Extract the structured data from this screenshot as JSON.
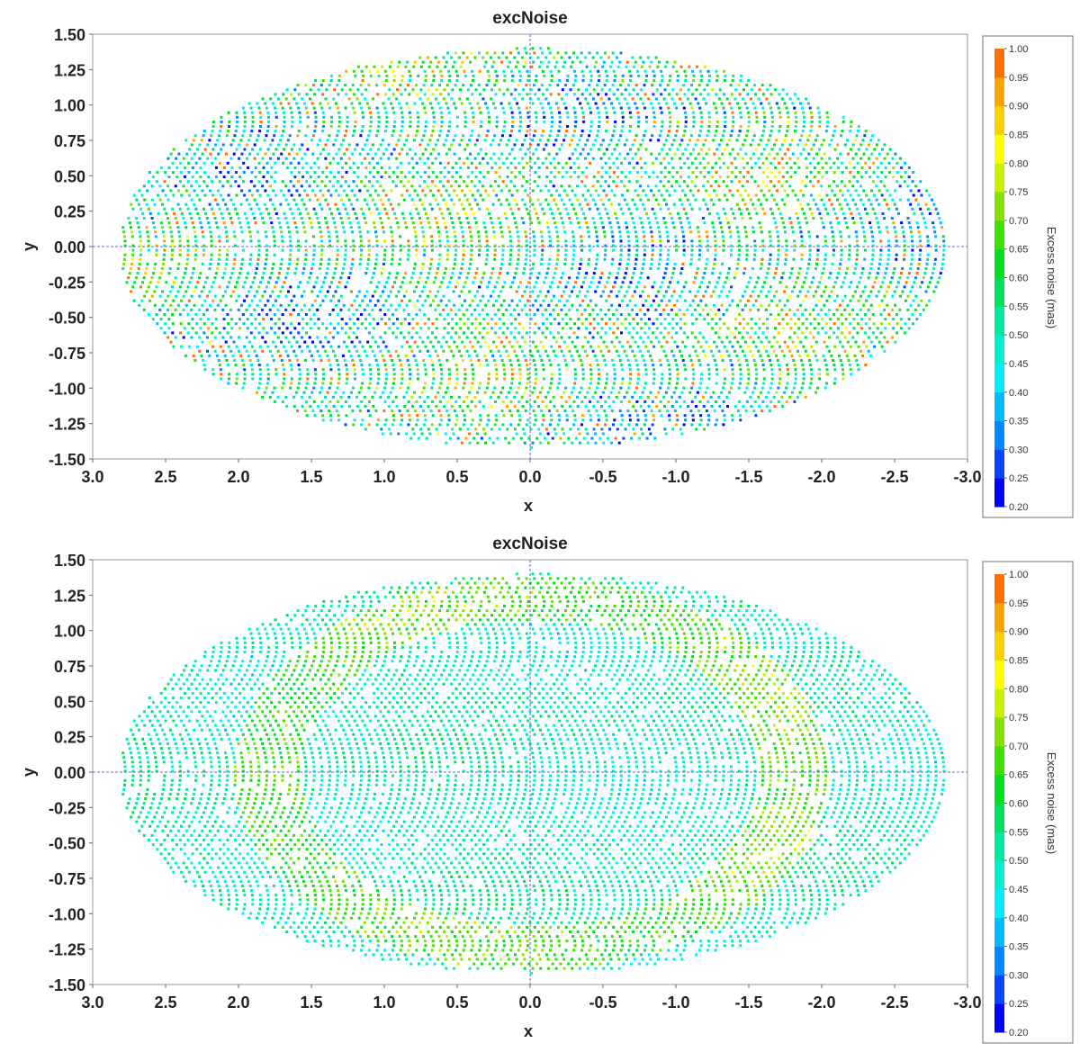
{
  "chart_data": [
    {
      "type": "heatmap",
      "title": "excNoise",
      "xlabel": "x",
      "ylabel": "y",
      "xlim": [
        3.0,
        -3.0
      ],
      "ylim": [
        -1.5,
        1.5
      ],
      "x_ticks": [
        "3.0",
        "2.5",
        "2.0",
        "1.5",
        "1.0",
        "0.5",
        "0.0",
        "-0.5",
        "-1.0",
        "-1.5",
        "-2.0",
        "-2.5",
        "-3.0"
      ],
      "y_ticks": [
        "1.50",
        "1.25",
        "1.00",
        "0.75",
        "0.50",
        "0.25",
        "0.00",
        "-0.25",
        "-0.50",
        "-0.75",
        "-1.00",
        "-1.25",
        "-1.50"
      ],
      "projection": "Hammer-Aitoff all-sky",
      "colorbar": {
        "label": "Excess noise (mas)",
        "min": 0.2,
        "max": 1.0,
        "ticks": [
          "1.00",
          "0.95",
          "0.90",
          "0.85",
          "0.80",
          "0.75",
          "0.70",
          "0.65",
          "0.60",
          "0.55",
          "0.50",
          "0.45",
          "0.40",
          "0.35",
          "0.30",
          "0.25",
          "0.20"
        ]
      },
      "description_values": {
        "typical": 0.52,
        "spread": 0.17,
        "max_seen": 1.0
      }
    },
    {
      "type": "heatmap",
      "title": "excNoise",
      "xlabel": "x",
      "ylabel": "y",
      "xlim": [
        3.0,
        -3.0
      ],
      "ylim": [
        -1.5,
        1.5
      ],
      "x_ticks": [
        "3.0",
        "2.5",
        "2.0",
        "1.5",
        "1.0",
        "0.5",
        "0.0",
        "-0.5",
        "-1.0",
        "-1.5",
        "-2.0",
        "-2.5",
        "-3.0"
      ],
      "y_ticks": [
        "1.50",
        "1.25",
        "1.00",
        "0.75",
        "0.50",
        "0.25",
        "0.00",
        "-0.25",
        "-0.50",
        "-0.75",
        "-1.00",
        "-1.25",
        "-1.50"
      ],
      "projection": "Hammer-Aitoff all-sky",
      "colorbar": {
        "label": "Excess noise (mas)",
        "min": 0.2,
        "max": 1.0,
        "ticks": [
          "1.00",
          "0.95",
          "0.90",
          "0.85",
          "0.80",
          "0.75",
          "0.70",
          "0.65",
          "0.60",
          "0.55",
          "0.50",
          "0.45",
          "0.40",
          "0.35",
          "0.30",
          "0.25",
          "0.20"
        ]
      },
      "description_values": {
        "typical": 0.5,
        "spread": 0.05,
        "max_seen": 0.8
      }
    }
  ],
  "colors": {
    "palette": [
      "#0000ff",
      "#0044ff",
      "#0088ff",
      "#00bbff",
      "#00eeff",
      "#00f0d0",
      "#00e8a0",
      "#00e060",
      "#00e020",
      "#40e000",
      "#88e000",
      "#c8f000",
      "#ffff00",
      "#ffd000",
      "#ffa500",
      "#ff7000"
    ]
  }
}
